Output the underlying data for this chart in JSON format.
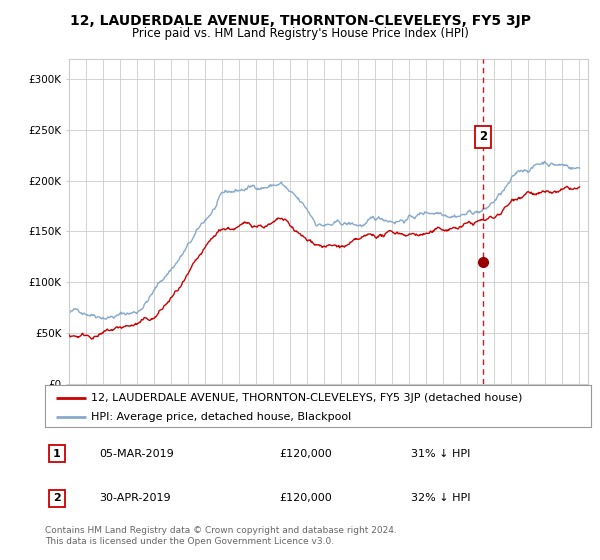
{
  "title": "12, LAUDERDALE AVENUE, THORNTON-CLEVELEYS, FY5 3JP",
  "subtitle": "Price paid vs. HM Land Registry's House Price Index (HPI)",
  "ylabel_ticks": [
    "£0",
    "£50K",
    "£100K",
    "£150K",
    "£200K",
    "£250K",
    "£300K"
  ],
  "ytick_vals": [
    0,
    50000,
    100000,
    150000,
    200000,
    250000,
    300000
  ],
  "ylim": [
    0,
    320000
  ],
  "xlim_start": 1995.0,
  "xlim_end": 2025.5,
  "red_line_label": "12, LAUDERDALE AVENUE, THORNTON-CLEVELEYS, FY5 3JP (detached house)",
  "blue_line_label": "HPI: Average price, detached house, Blackpool",
  "transaction1_date": "05-MAR-2019",
  "transaction1_price": "£120,000",
  "transaction1_hpi": "31% ↓ HPI",
  "transaction2_date": "30-APR-2019",
  "transaction2_price": "£120,000",
  "transaction2_hpi": "32% ↓ HPI",
  "marker_x": 2019.33,
  "marker_y": 120000,
  "vline_x": 2019.33,
  "footer": "Contains HM Land Registry data © Crown copyright and database right 2024.\nThis data is licensed under the Open Government Licence v3.0.",
  "bg_color": "#ffffff",
  "plot_bg_color": "#ffffff",
  "grid_color": "#cccccc",
  "red_color": "#cc0000",
  "blue_color": "#88aacc",
  "vline_color": "#cc0000",
  "title_fontsize": 10,
  "subtitle_fontsize": 8.5,
  "tick_fontsize": 7.5,
  "legend_fontsize": 8,
  "table_fontsize": 8,
  "footer_fontsize": 6.5
}
